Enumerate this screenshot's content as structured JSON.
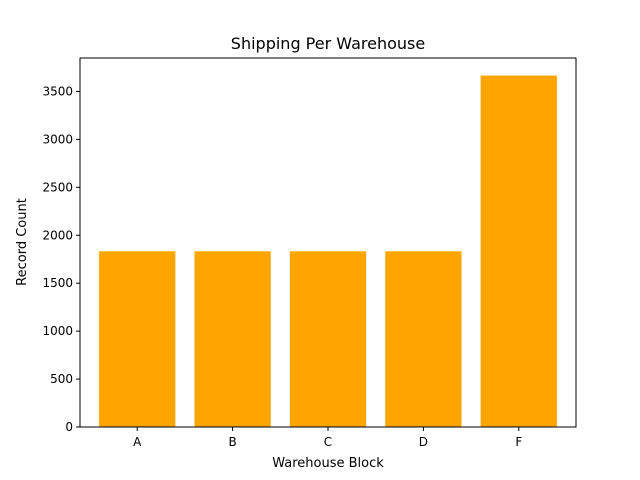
{
  "chart_data": {
    "type": "bar",
    "title": "Shipping Per Warehouse",
    "xlabel": "Warehouse Block",
    "ylabel": "Record Count",
    "categories": [
      "A",
      "B",
      "C",
      "D",
      "F"
    ],
    "values": [
      1833,
      1833,
      1833,
      1833,
      3666
    ],
    "ylim": [
      0,
      3849
    ],
    "yticks": [
      0,
      500,
      1000,
      1500,
      2000,
      2500,
      3000,
      3500
    ],
    "bar_color": "#FFA500",
    "grid": false,
    "legend": "none"
  }
}
